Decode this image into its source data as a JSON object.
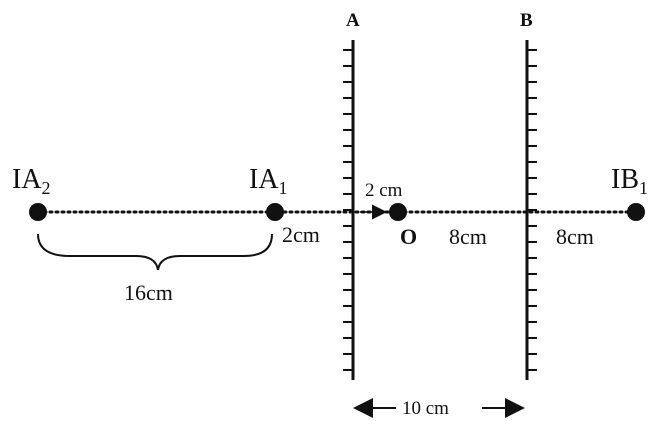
{
  "mirrors": {
    "a_label": "A",
    "b_label": "B"
  },
  "points": {
    "ia2": {
      "base": "IA",
      "sub": "2"
    },
    "ia1": {
      "base": "IA",
      "sub": "1"
    },
    "ib1": {
      "base": "IB",
      "sub": "1"
    },
    "o": "O"
  },
  "distances": {
    "brace": "16cm",
    "ia1_to_a": "2cm",
    "a_to_o": "2 cm",
    "o_to_b": "8cm",
    "b_to_ib1": "8cm",
    "mirror_gap": "10 cm"
  },
  "colors": {
    "ink": "#111111",
    "background": "#ffffff"
  }
}
